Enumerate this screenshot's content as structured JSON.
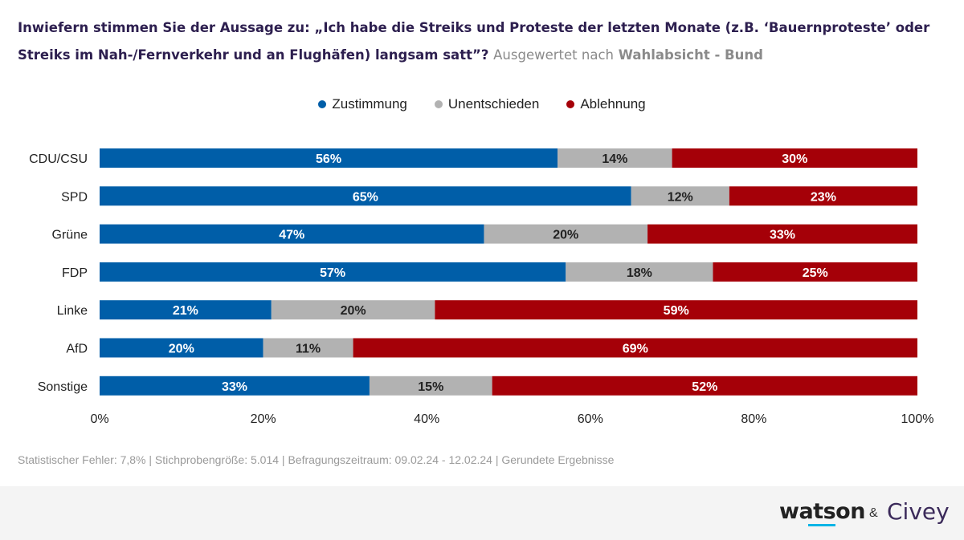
{
  "title": {
    "question": "Inwiefern stimmen Sie der Aussage zu: „Ich habe die Streiks und Proteste der letzten Monate (z.B. ‘Bauernproteste’ oder Streiks im Nah-/Fernverkehr und an Flughäfen) langsam satt”?",
    "evaluated_prefix": "Ausgewertet nach",
    "evaluated_by": "Wahlabsicht - Bund"
  },
  "footnote": "Statistischer Fehler: 7,8% | Stichprobengröße: 5.014 | Befragungszeitraum: 09.02.24 - 12.02.24 | Gerundete Ergebnisse",
  "brand": {
    "watson": "watson",
    "amp": "&",
    "civey": "Civey"
  },
  "colors": {
    "zustimmung": "#005ea8",
    "unentschieden": "#b2b2b2",
    "ablehnung": "#a50008",
    "title": "#2d1f4f"
  },
  "chart_data": {
    "type": "bar",
    "orientation": "horizontal",
    "stacked": true,
    "categories": [
      "CDU/CSU",
      "SPD",
      "Grüne",
      "FDP",
      "Linke",
      "AfD",
      "Sonstige"
    ],
    "series": [
      {
        "name": "Zustimmung",
        "values": [
          56,
          65,
          47,
          57,
          21,
          20,
          33
        ]
      },
      {
        "name": "Unentschieden",
        "values": [
          14,
          12,
          20,
          18,
          20,
          11,
          15
        ]
      },
      {
        "name": "Ablehnung",
        "values": [
          30,
          23,
          33,
          25,
          59,
          69,
          52
        ]
      }
    ],
    "xlim": [
      0,
      100
    ],
    "xticks": [
      "0%",
      "20%",
      "40%",
      "60%",
      "80%",
      "100%"
    ],
    "value_suffix": "%",
    "legend_position": "top-center",
    "grid": false
  }
}
